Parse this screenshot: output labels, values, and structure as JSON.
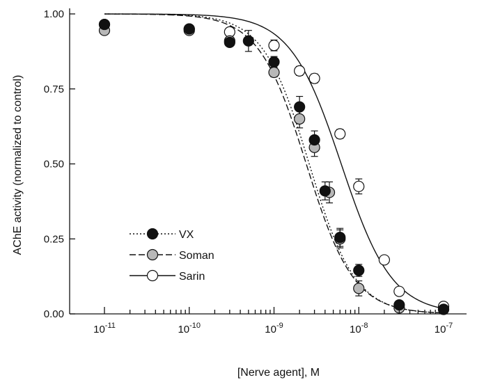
{
  "chart_data": {
    "type": "scatter",
    "xlabel": "[Nerve agent], M",
    "ylabel": "AChE activity (normalized to control)",
    "x_scale": "log",
    "xlim": [
      "1e-11",
      "1e-7"
    ],
    "ylim": [
      0,
      1.0
    ],
    "x_ticks": [
      {
        "value": "1e-11",
        "base": "10",
        "exp": "-11"
      },
      {
        "value": "1e-10",
        "base": "10",
        "exp": "-10"
      },
      {
        "value": "1e-9",
        "base": "10",
        "exp": "-9"
      },
      {
        "value": "1e-8",
        "base": "10",
        "exp": "-8"
      },
      {
        "value": "1e-7",
        "base": "10",
        "exp": "-7"
      }
    ],
    "y_ticks": [
      {
        "value": 0,
        "label": "0.00"
      },
      {
        "value": 0.25,
        "label": "0.25"
      },
      {
        "value": 0.5,
        "label": "0.50"
      },
      {
        "value": 0.75,
        "label": "0.75"
      },
      {
        "value": 1.0,
        "label": "1.00"
      }
    ],
    "grid": false,
    "legend_position": "bottom-left",
    "series": [
      {
        "name": "VX",
        "marker": "filled-circle",
        "marker_fill": "#111111",
        "line_style": "dotted",
        "fit_ic50": "2.6e-9",
        "fit_hill": 1.6,
        "points": [
          {
            "x": "1e-11",
            "y": 0.965,
            "err": 0.008
          },
          {
            "x": "1e-10",
            "y": 0.95,
            "err": 0.008
          },
          {
            "x": "3e-10",
            "y": 0.905,
            "err": 0.01
          },
          {
            "x": "5e-10",
            "y": 0.91,
            "err": 0.035
          },
          {
            "x": "1e-9",
            "y": 0.84,
            "err": 0.018
          },
          {
            "x": "2e-9",
            "y": 0.69,
            "err": 0.035
          },
          {
            "x": "3e-9",
            "y": 0.58,
            "err": 0.03
          },
          {
            "x": "4e-9",
            "y": 0.41,
            "err": 0.03
          },
          {
            "x": "6e-9",
            "y": 0.255,
            "err": 0.03
          },
          {
            "x": "1e-8",
            "y": 0.145,
            "err": 0.02
          },
          {
            "x": "3e-8",
            "y": 0.03,
            "err": 0.01
          },
          {
            "x": "1e-7",
            "y": 0.015,
            "err": 0.005
          }
        ]
      },
      {
        "name": "Soman",
        "marker": "gray-circle",
        "marker_fill": "#b8b8b8",
        "line_style": "dashed",
        "fit_ic50": "2.4e-9",
        "fit_hill": 1.55,
        "points": [
          {
            "x": "1e-11",
            "y": 0.945,
            "err": 0.008
          },
          {
            "x": "1e-10",
            "y": 0.945,
            "err": 0.008
          },
          {
            "x": "3e-10",
            "y": 0.91,
            "err": 0.01
          },
          {
            "x": "1e-9",
            "y": 0.805,
            "err": 0.015
          },
          {
            "x": "2e-9",
            "y": 0.65,
            "err": 0.03
          },
          {
            "x": "3e-9",
            "y": 0.555,
            "err": 0.03
          },
          {
            "x": "4.5e-9",
            "y": 0.405,
            "err": 0.035
          },
          {
            "x": "6e-9",
            "y": 0.25,
            "err": 0.03
          },
          {
            "x": "1e-8",
            "y": 0.085,
            "err": 0.025
          },
          {
            "x": "3e-8",
            "y": 0.02,
            "err": 0.008
          },
          {
            "x": "1e-7",
            "y": 0.015,
            "err": 0.005
          }
        ]
      },
      {
        "name": "Sarin",
        "marker": "open-circle",
        "marker_fill": "#ffffff",
        "line_style": "solid",
        "fit_ic50": "6.2e-9",
        "fit_hill": 1.45,
        "points": [
          {
            "x": "1e-11",
            "y": 0.965,
            "err": 0.008
          },
          {
            "x": "1e-10",
            "y": 0.95,
            "err": 0.008
          },
          {
            "x": "3e-10",
            "y": 0.94,
            "err": 0.01
          },
          {
            "x": "1e-9",
            "y": 0.895,
            "err": 0.018
          },
          {
            "x": "2e-9",
            "y": 0.81,
            "err": 0.015
          },
          {
            "x": "3e-9",
            "y": 0.785,
            "err": 0.015
          },
          {
            "x": "6e-9",
            "y": 0.6,
            "err": 0.015
          },
          {
            "x": "1e-8",
            "y": 0.425,
            "err": 0.025
          },
          {
            "x": "2e-8",
            "y": 0.18,
            "err": 0.012
          },
          {
            "x": "3e-8",
            "y": 0.075,
            "err": 0.012
          },
          {
            "x": "1e-7",
            "y": 0.025,
            "err": 0.008
          }
        ]
      }
    ]
  }
}
